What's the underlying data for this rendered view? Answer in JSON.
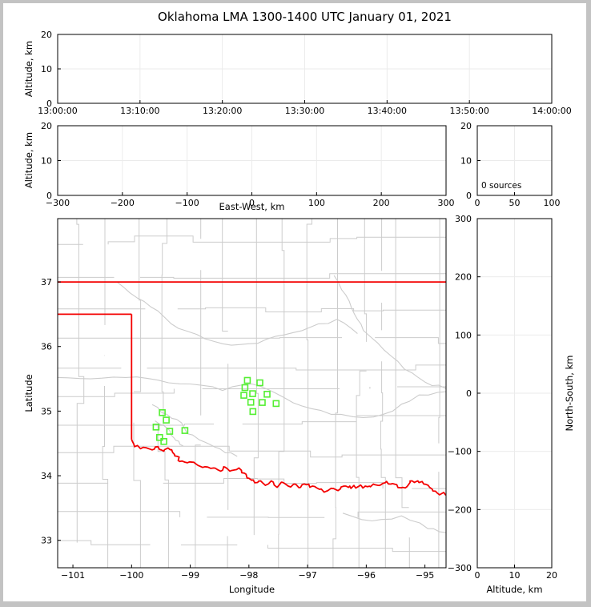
{
  "title": "Oklahoma LMA 1300-1400 UTC January 01, 2021",
  "colors": {
    "state_border": "#f40000",
    "county_lines": "#cccccc",
    "rivers": "#cccccc",
    "stations": "#54ef32",
    "grid": "#ebebeb",
    "axis": "#000000",
    "frame": "#c3c3c3",
    "background": "#ffffff"
  },
  "chart_data": [
    {
      "id": "time_height",
      "type": "scatter",
      "ylabel": "Altitude, km",
      "xlabel": "",
      "xlim": [
        0,
        6
      ],
      "xticks": [
        0,
        1,
        2,
        3,
        4,
        5,
        6
      ],
      "xtick_labels": [
        "13:00:00",
        "13:10:00",
        "13:20:00",
        "13:30:00",
        "13:40:00",
        "13:50:00",
        "14:00:00"
      ],
      "ylim": [
        0,
        20
      ],
      "yticks": [
        0,
        10,
        20
      ],
      "grid": true,
      "points": []
    },
    {
      "id": "ew_height",
      "type": "scatter",
      "ylabel": "Altitude, km",
      "xlabel": "East-West, km",
      "xlim": [
        -300,
        300
      ],
      "xticks": [
        -300,
        -200,
        -100,
        0,
        100,
        200,
        300
      ],
      "ylim": [
        0,
        20
      ],
      "yticks": [
        0,
        10,
        20
      ],
      "grid": true,
      "points": []
    },
    {
      "id": "altitude_histogram",
      "type": "line",
      "annotation": "0 sources",
      "xlim": [
        0,
        100
      ],
      "xticks": [
        0,
        50,
        100
      ],
      "ylim": [
        0,
        20
      ],
      "yticks": [
        0,
        10,
        20
      ],
      "grid": true,
      "points": []
    },
    {
      "id": "plan_map",
      "type": "scatter",
      "xlabel": "Longitude",
      "ylabel": "Latitude",
      "xlim": [
        -101.26,
        -94.64
      ],
      "ylim": [
        32.575,
        37.98
      ],
      "xticks": [
        -101,
        -100,
        -99,
        -98,
        -97,
        -96,
        -95
      ],
      "yticks": [
        33,
        34,
        35,
        36,
        37
      ],
      "grid": false,
      "stations": [
        [
          -98.027,
          35.476
        ],
        [
          -97.813,
          35.439
        ],
        [
          -98.068,
          35.364
        ],
        [
          -98.086,
          35.245
        ],
        [
          -97.936,
          35.27
        ],
        [
          -97.69,
          35.261
        ],
        [
          -97.968,
          35.138
        ],
        [
          -97.772,
          35.134
        ],
        [
          -97.536,
          35.117
        ],
        [
          -97.932,
          34.993
        ],
        [
          -99.477,
          34.976
        ],
        [
          -99.409,
          34.861
        ],
        [
          -99.582,
          34.753
        ],
        [
          -99.35,
          34.688
        ],
        [
          -99.091,
          34.7
        ],
        [
          -99.523,
          34.592
        ],
        [
          -99.45,
          34.53
        ]
      ],
      "state_border": [
        [
          [
            -101.26,
            37.0
          ],
          [
            -94.64,
            37.0
          ]
        ],
        [
          [
            -101.26,
            36.5
          ],
          [
            -100.0,
            36.5
          ]
        ],
        [
          [
            -100.0,
            36.5
          ],
          [
            -100.0,
            34.56
          ]
        ]
      ],
      "red_river": [
        [
          -100.0,
          34.56
        ],
        [
          -99.95,
          34.45
        ],
        [
          -99.8,
          34.44
        ],
        [
          -99.65,
          34.4
        ],
        [
          -99.55,
          34.45
        ],
        [
          -99.45,
          34.38
        ],
        [
          -99.38,
          34.43
        ],
        [
          -99.3,
          34.36
        ],
        [
          -99.22,
          34.3
        ],
        [
          -99.18,
          34.22
        ],
        [
          -99.05,
          34.2
        ],
        [
          -98.9,
          34.18
        ],
        [
          -98.75,
          34.14
        ],
        [
          -98.6,
          34.12
        ],
        [
          -98.48,
          34.07
        ],
        [
          -98.4,
          34.13
        ],
        [
          -98.3,
          34.08
        ],
        [
          -98.17,
          34.12
        ],
        [
          -98.08,
          34.04
        ],
        [
          -98.0,
          33.96
        ],
        [
          -97.9,
          33.89
        ],
        [
          -97.8,
          33.92
        ],
        [
          -97.7,
          33.86
        ],
        [
          -97.62,
          33.92
        ],
        [
          -97.52,
          33.82
        ],
        [
          -97.44,
          33.9
        ],
        [
          -97.33,
          33.84
        ],
        [
          -97.22,
          33.87
        ],
        [
          -97.12,
          33.82
        ],
        [
          -97.02,
          33.86
        ],
        [
          -96.92,
          33.84
        ],
        [
          -96.8,
          33.79
        ],
        [
          -96.68,
          33.76
        ],
        [
          -96.58,
          33.8
        ],
        [
          -96.48,
          33.77
        ],
        [
          -96.38,
          33.84
        ],
        [
          -96.28,
          33.84
        ],
        [
          -96.18,
          33.81
        ],
        [
          -96.08,
          33.84
        ],
        [
          -95.98,
          33.83
        ],
        [
          -95.88,
          33.87
        ],
        [
          -95.78,
          33.85
        ],
        [
          -95.68,
          33.89
        ],
        [
          -95.58,
          33.87
        ],
        [
          -95.48,
          33.86
        ],
        [
          -95.38,
          33.82
        ],
        [
          -95.28,
          33.86
        ],
        [
          -95.22,
          33.92
        ],
        [
          -95.12,
          33.92
        ],
        [
          -95.02,
          33.87
        ],
        [
          -94.92,
          33.82
        ],
        [
          -94.82,
          33.76
        ],
        [
          -94.72,
          33.72
        ],
        [
          -94.64,
          33.7
        ]
      ],
      "rivers": [
        [
          [
            -100.25,
            37.0
          ],
          [
            -99.9,
            36.75
          ],
          [
            -99.55,
            36.55
          ],
          [
            -99.2,
            36.28
          ],
          [
            -98.75,
            36.12
          ],
          [
            -98.3,
            36.02
          ],
          [
            -97.85,
            36.05
          ],
          [
            -97.4,
            36.18
          ],
          [
            -96.95,
            36.3
          ],
          [
            -96.5,
            36.42
          ],
          [
            -96.15,
            36.2
          ]
        ],
        [
          [
            -96.55,
            37.1
          ],
          [
            -96.35,
            36.8
          ],
          [
            -96.2,
            36.5
          ],
          [
            -96.05,
            36.25
          ],
          [
            -95.7,
            35.95
          ],
          [
            -95.35,
            35.65
          ],
          [
            -95.0,
            35.45
          ],
          [
            -94.64,
            35.35
          ]
        ],
        [
          [
            -101.26,
            35.52
          ],
          [
            -100.7,
            35.5
          ],
          [
            -100.1,
            35.52
          ],
          [
            -99.55,
            35.48
          ],
          [
            -99.0,
            35.42
          ],
          [
            -98.45,
            35.32
          ],
          [
            -97.95,
            35.42
          ],
          [
            -97.55,
            35.28
          ],
          [
            -97.1,
            35.08
          ],
          [
            -96.6,
            34.95
          ],
          [
            -96.05,
            34.9
          ],
          [
            -95.55,
            35.0
          ],
          [
            -95.1,
            35.25
          ],
          [
            -94.64,
            35.3
          ]
        ],
        [
          [
            -99.65,
            35.1
          ],
          [
            -99.4,
            34.95
          ],
          [
            -99.15,
            34.82
          ],
          [
            -99.05,
            34.65
          ],
          [
            -98.75,
            34.52
          ],
          [
            -98.5,
            34.42
          ],
          [
            -98.2,
            34.3
          ]
        ],
        [
          [
            -99.6,
            34.85
          ],
          [
            -99.35,
            34.7
          ],
          [
            -99.25,
            34.55
          ],
          [
            -99.12,
            34.46
          ]
        ],
        [
          [
            -96.4,
            33.42
          ],
          [
            -95.9,
            33.3
          ],
          [
            -95.4,
            33.38
          ],
          [
            -94.95,
            33.18
          ],
          [
            -94.64,
            33.12
          ]
        ]
      ]
    },
    {
      "id": "ns_height",
      "type": "scatter",
      "xlabel": "Altitude, km",
      "ylabel": "North-South, km",
      "xlim": [
        0,
        20
      ],
      "xticks": [
        0,
        10,
        20
      ],
      "ylim": [
        -300,
        300
      ],
      "yticks": [
        -300,
        -200,
        -100,
        0,
        100,
        200,
        300
      ],
      "grid": true,
      "points": []
    }
  ]
}
